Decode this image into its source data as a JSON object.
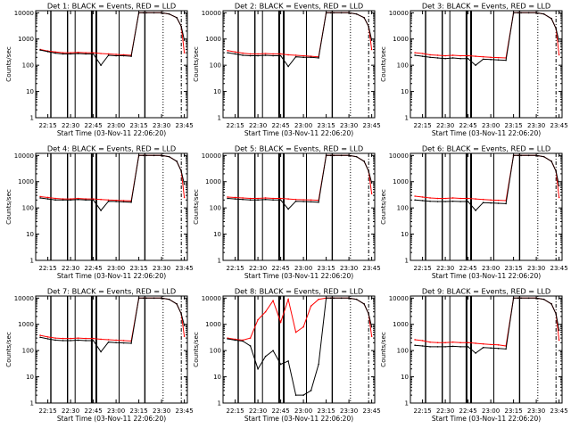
{
  "figure": {
    "time_labels": [
      "22:15",
      "22:30",
      "22:45",
      "23:00",
      "23:15",
      "23:30",
      "23:45"
    ],
    "y_ticks": [
      {
        "value": 1,
        "label": "1"
      },
      {
        "value": 10,
        "label": "10"
      },
      {
        "value": 100,
        "label": "100"
      },
      {
        "value": 1000,
        "label": "1000"
      },
      {
        "value": 10000,
        "label": "10000"
      }
    ],
    "colors": {
      "events": "#000000",
      "lld": "#ff0000",
      "axes": "#000000"
    }
  },
  "chart_data": [
    {
      "type": "line",
      "title": "Det 1: BLACK = Events, RED = LLD",
      "xlabel": "Start Time (03-Nov-11 22:06:20)",
      "ylabel": "Counts/sec",
      "ylim": [
        1,
        12000
      ],
      "yscale": "log",
      "x": [
        "22:10",
        "22:15",
        "22:20",
        "22:25",
        "22:30",
        "22:35",
        "22:40",
        "22:45",
        "22:50",
        "22:55",
        "23:00",
        "23:05",
        "23:10",
        "23:15",
        "23:18",
        "23:20",
        "23:25",
        "23:30",
        "23:35",
        "23:40",
        "23:43",
        "23:45"
      ],
      "series": [
        {
          "name": "Events",
          "values": [
            380,
            330,
            290,
            270,
            270,
            280,
            270,
            270,
            100,
            240,
            230,
            230,
            220,
            10000,
            10000,
            10000,
            10000,
            10000,
            9000,
            6500,
            3000,
            900
          ]
        },
        {
          "name": "LLD",
          "values": [
            400,
            350,
            320,
            300,
            300,
            310,
            300,
            300,
            280,
            270,
            260,
            250,
            240,
            10000,
            10000,
            10000,
            10000,
            10000,
            9000,
            6500,
            3000,
            300
          ]
        }
      ]
    },
    {
      "type": "line",
      "title": "Det 2: BLACK = Events, RED = LLD",
      "xlabel": "Start Time (03-Nov-11 22:06:20)",
      "ylabel": "Counts/sec",
      "ylim": [
        1,
        12000
      ],
      "yscale": "log",
      "x": [
        "22:10",
        "22:15",
        "22:20",
        "22:25",
        "22:30",
        "22:35",
        "22:40",
        "22:45",
        "22:50",
        "22:55",
        "23:00",
        "23:05",
        "23:10",
        "23:15",
        "23:18",
        "23:20",
        "23:25",
        "23:30",
        "23:35",
        "23:40",
        "23:43",
        "23:45"
      ],
      "series": [
        {
          "name": "Events",
          "values": [
            300,
            270,
            240,
            230,
            230,
            240,
            230,
            230,
            90,
            210,
            200,
            200,
            190,
            10000,
            10000,
            10000,
            10000,
            10000,
            9000,
            6500,
            3000,
            900
          ]
        },
        {
          "name": "LLD",
          "values": [
            360,
            320,
            290,
            270,
            270,
            280,
            270,
            270,
            250,
            240,
            230,
            220,
            210,
            10000,
            10000,
            10000,
            10000,
            10000,
            9000,
            6500,
            3000,
            400
          ]
        }
      ]
    },
    {
      "type": "line",
      "title": "Det 3: BLACK = Events, RED = LLD",
      "xlabel": "Start Time (03-Nov-11 22:06:20)",
      "ylabel": "Counts/sec",
      "ylim": [
        1,
        12000
      ],
      "yscale": "log",
      "x": [
        "22:10",
        "22:15",
        "22:20",
        "22:25",
        "22:30",
        "22:35",
        "22:40",
        "22:45",
        "22:50",
        "22:55",
        "23:00",
        "23:05",
        "23:10",
        "23:15",
        "23:18",
        "23:20",
        "23:25",
        "23:30",
        "23:35",
        "23:40",
        "23:43",
        "23:45"
      ],
      "series": [
        {
          "name": "Events",
          "values": [
            240,
            220,
            200,
            190,
            180,
            190,
            180,
            180,
            100,
            170,
            165,
            160,
            155,
            10000,
            10000,
            10000,
            10000,
            10000,
            9000,
            6000,
            2500,
            800
          ]
        },
        {
          "name": "LLD",
          "values": [
            300,
            280,
            250,
            240,
            230,
            240,
            230,
            230,
            220,
            210,
            200,
            195,
            190,
            10000,
            10000,
            10000,
            10000,
            10000,
            9000,
            6000,
            2500,
            250
          ]
        }
      ]
    },
    {
      "type": "line",
      "title": "Det 4: BLACK = Events, RED = LLD",
      "xlabel": "Start Time (03-Nov-11 22:06:20)",
      "ylabel": "Counts/sec",
      "ylim": [
        1,
        12000
      ],
      "yscale": "log",
      "x": [
        "22:10",
        "22:15",
        "22:20",
        "22:25",
        "22:30",
        "22:35",
        "22:40",
        "22:45",
        "22:50",
        "22:55",
        "23:00",
        "23:05",
        "23:10",
        "23:15",
        "23:18",
        "23:20",
        "23:25",
        "23:30",
        "23:35",
        "23:40",
        "23:43",
        "23:45"
      ],
      "series": [
        {
          "name": "Events",
          "values": [
            240,
            220,
            200,
            200,
            200,
            210,
            200,
            200,
            80,
            180,
            175,
            170,
            165,
            10000,
            10000,
            10000,
            10000,
            10000,
            9000,
            6000,
            2500,
            800
          ]
        },
        {
          "name": "LLD",
          "values": [
            270,
            250,
            230,
            220,
            220,
            230,
            220,
            220,
            210,
            200,
            195,
            190,
            185,
            10000,
            10000,
            10000,
            10000,
            10000,
            9000,
            6000,
            2500,
            250
          ]
        }
      ]
    },
    {
      "type": "line",
      "title": "Det 5: BLACK = Events, RED = LLD",
      "xlabel": "Start Time (03-Nov-11 22:06:20)",
      "ylabel": "Counts/sec",
      "ylim": [
        1,
        12000
      ],
      "yscale": "log",
      "x": [
        "22:10",
        "22:15",
        "22:20",
        "22:25",
        "22:30",
        "22:35",
        "22:40",
        "22:45",
        "22:50",
        "22:55",
        "23:00",
        "23:05",
        "23:10",
        "23:15",
        "23:18",
        "23:20",
        "23:25",
        "23:30",
        "23:35",
        "23:40",
        "23:43",
        "23:45"
      ],
      "series": [
        {
          "name": "Events",
          "values": [
            230,
            220,
            210,
            200,
            200,
            210,
            200,
            200,
            90,
            180,
            175,
            170,
            165,
            10000,
            10000,
            10000,
            10000,
            10000,
            9000,
            6000,
            2500,
            900
          ]
        },
        {
          "name": "LLD",
          "values": [
            260,
            250,
            240,
            230,
            230,
            240,
            230,
            230,
            220,
            210,
            205,
            200,
            195,
            10000,
            10000,
            10000,
            10000,
            10000,
            9000,
            6000,
            2500,
            350
          ]
        }
      ]
    },
    {
      "type": "line",
      "title": "Det 6: BLACK = Events, RED = LLD",
      "xlabel": "Start Time (03-Nov-11 22:06:20)",
      "ylabel": "Counts/sec",
      "ylim": [
        1,
        12000
      ],
      "yscale": "log",
      "x": [
        "22:10",
        "22:15",
        "22:20",
        "22:25",
        "22:30",
        "22:35",
        "22:40",
        "22:45",
        "22:50",
        "22:55",
        "23:00",
        "23:05",
        "23:10",
        "23:15",
        "23:18",
        "23:20",
        "23:25",
        "23:30",
        "23:35",
        "23:40",
        "23:43",
        "23:45"
      ],
      "series": [
        {
          "name": "Events",
          "values": [
            200,
            190,
            180,
            175,
            175,
            180,
            175,
            175,
            80,
            160,
            155,
            150,
            145,
            10000,
            10000,
            10000,
            10000,
            10000,
            9000,
            6000,
            2500,
            700
          ]
        },
        {
          "name": "LLD",
          "values": [
            280,
            260,
            240,
            230,
            230,
            240,
            230,
            230,
            220,
            210,
            200,
            195,
            190,
            10000,
            10000,
            10000,
            10000,
            10000,
            9000,
            6000,
            2500,
            250
          ]
        }
      ]
    },
    {
      "type": "line",
      "title": "Det 7: BLACK = Events, RED = LLD",
      "xlabel": "Start Time (03-Nov-11 22:06:20)",
      "ylabel": "Counts/sec",
      "ylim": [
        1,
        12000
      ],
      "yscale": "log",
      "x": [
        "22:10",
        "22:15",
        "22:20",
        "22:25",
        "22:30",
        "22:35",
        "22:40",
        "22:45",
        "22:50",
        "22:55",
        "23:00",
        "23:05",
        "23:10",
        "23:15",
        "23:18",
        "23:20",
        "23:25",
        "23:30",
        "23:35",
        "23:40",
        "23:43",
        "23:45"
      ],
      "series": [
        {
          "name": "Events",
          "values": [
            320,
            280,
            250,
            240,
            240,
            250,
            240,
            240,
            90,
            210,
            200,
            195,
            190,
            10000,
            10000,
            10000,
            10000,
            10000,
            9000,
            6000,
            2500,
            900
          ]
        },
        {
          "name": "LLD",
          "values": [
            380,
            330,
            300,
            290,
            290,
            300,
            290,
            290,
            270,
            260,
            250,
            240,
            230,
            10000,
            10000,
            10000,
            10000,
            10000,
            9000,
            6000,
            2500,
            350
          ]
        }
      ]
    },
    {
      "type": "line",
      "title": "Det 8: BLACK = Events, RED = LLD",
      "xlabel": "Start Time (03-Nov-11 22:06:20)",
      "ylabel": "Counts/sec",
      "ylim": [
        1,
        12000
      ],
      "yscale": "log",
      "x": [
        "22:10",
        "22:15",
        "22:20",
        "22:25",
        "22:30",
        "22:35",
        "22:40",
        "22:45",
        "22:50",
        "22:55",
        "23:00",
        "23:05",
        "23:10",
        "23:15",
        "23:18",
        "23:20",
        "23:25",
        "23:30",
        "23:35",
        "23:40",
        "23:43",
        "23:45"
      ],
      "series": [
        {
          "name": "Events",
          "values": [
            280,
            250,
            230,
            150,
            20,
            60,
            100,
            30,
            40,
            2,
            2,
            3,
            30,
            10000,
            10000,
            10000,
            10000,
            10000,
            9000,
            6000,
            2500,
            800
          ]
        },
        {
          "name": "LLD",
          "values": [
            300,
            270,
            250,
            300,
            1500,
            3000,
            8000,
            1200,
            9000,
            500,
            800,
            5000,
            9000,
            10000,
            10000,
            10000,
            10000,
            10000,
            9000,
            6000,
            2500,
            350
          ]
        }
      ]
    },
    {
      "type": "line",
      "title": "Det 9: BLACK = Events, RED = LLD",
      "xlabel": "Start Time (03-Nov-11 22:06:20)",
      "ylabel": "Counts/sec",
      "ylim": [
        1,
        12000
      ],
      "yscale": "log",
      "x": [
        "22:10",
        "22:15",
        "22:20",
        "22:25",
        "22:30",
        "22:35",
        "22:40",
        "22:45",
        "22:50",
        "22:55",
        "23:00",
        "23:05",
        "23:10",
        "23:15",
        "23:18",
        "23:20",
        "23:25",
        "23:30",
        "23:35",
        "23:40",
        "23:43",
        "23:45"
      ],
      "series": [
        {
          "name": "Events",
          "values": [
            160,
            150,
            140,
            140,
            140,
            145,
            140,
            140,
            80,
            130,
            125,
            120,
            115,
            10000,
            10000,
            10000,
            10000,
            10000,
            9000,
            6000,
            2500,
            600
          ]
        },
        {
          "name": "LLD",
          "values": [
            260,
            240,
            210,
            200,
            200,
            210,
            200,
            200,
            190,
            180,
            170,
            165,
            150,
            10000,
            10000,
            10000,
            10000,
            10000,
            9000,
            6000,
            2500,
            250
          ]
        }
      ]
    }
  ]
}
